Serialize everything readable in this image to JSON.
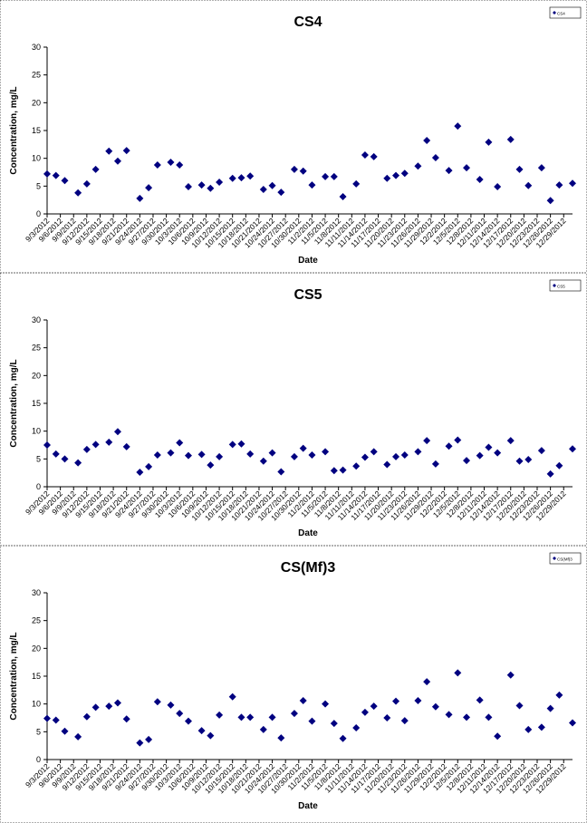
{
  "chart_data": [
    {
      "type": "scatter",
      "title": "CS4",
      "x_label": "Date",
      "y_label": "Concentration, mg/L",
      "legend": "upper right",
      "ylim": [
        0,
        30
      ],
      "yticks": [
        0,
        5,
        10,
        15,
        20,
        25,
        30
      ],
      "xlim": [
        "2012-09-03",
        "2012-12-31"
      ],
      "xticks": [
        {
          "value": "2012-09-03",
          "label": "9/3/2012"
        },
        {
          "value": "2012-09-06",
          "label": "9/6/2012"
        },
        {
          "value": "2012-09-09",
          "label": "9/9/2012"
        },
        {
          "value": "2012-09-12",
          "label": "9/12/2012"
        },
        {
          "value": "2012-09-15",
          "label": "9/15/2012"
        },
        {
          "value": "2012-09-18",
          "label": "9/18/2012"
        },
        {
          "value": "2012-09-21",
          "label": "9/21/2012"
        },
        {
          "value": "2012-09-24",
          "label": "9/24/2012"
        },
        {
          "value": "2012-09-27",
          "label": "9/27/2012"
        },
        {
          "value": "2012-09-30",
          "label": "9/30/2012"
        },
        {
          "value": "2012-10-03",
          "label": "10/3/2012"
        },
        {
          "value": "2012-10-06",
          "label": "10/6/2012"
        },
        {
          "value": "2012-10-09",
          "label": "10/9/2012"
        },
        {
          "value": "2012-10-12",
          "label": "10/12/2012"
        },
        {
          "value": "2012-10-15",
          "label": "10/15/2012"
        },
        {
          "value": "2012-10-18",
          "label": "10/18/2012"
        },
        {
          "value": "2012-10-21",
          "label": "10/21/2012"
        },
        {
          "value": "2012-10-24",
          "label": "10/24/2012"
        },
        {
          "value": "2012-10-27",
          "label": "10/27/2012"
        },
        {
          "value": "2012-10-30",
          "label": "10/30/2012"
        },
        {
          "value": "2012-11-02",
          "label": "11/2/2012"
        },
        {
          "value": "2012-11-05",
          "label": "11/5/2012"
        },
        {
          "value": "2012-11-08",
          "label": "11/8/2012"
        },
        {
          "value": "2012-11-11",
          "label": "11/11/2012"
        },
        {
          "value": "2012-11-14",
          "label": "11/14/2012"
        },
        {
          "value": "2012-11-17",
          "label": "11/17/2012"
        },
        {
          "value": "2012-11-20",
          "label": "11/20/2012"
        },
        {
          "value": "2012-11-23",
          "label": "11/23/2012"
        },
        {
          "value": "2012-11-26",
          "label": "11/26/2012"
        },
        {
          "value": "2012-11-29",
          "label": "11/29/2012"
        },
        {
          "value": "2012-12-02",
          "label": "12/2/2012"
        },
        {
          "value": "2012-12-05",
          "label": "12/5/2012"
        },
        {
          "value": "2012-12-08",
          "label": "12/8/2012"
        },
        {
          "value": "2012-12-11",
          "label": "12/11/2012"
        },
        {
          "value": "2012-12-14",
          "label": "12/14/2012"
        },
        {
          "value": "2012-12-17",
          "label": "12/17/2012"
        },
        {
          "value": "2012-12-20",
          "label": "12/20/2012"
        },
        {
          "value": "2012-12-23",
          "label": "12/23/2012"
        },
        {
          "value": "2012-12-26",
          "label": "12/26/2012"
        },
        {
          "value": "2012-12-29",
          "label": "12/29/2012"
        }
      ],
      "series": [
        {
          "name": "CS4",
          "color": "#000080",
          "x": [
            "2012-09-03",
            "2012-09-05",
            "2012-09-07",
            "2012-09-10",
            "2012-09-12",
            "2012-09-14",
            "2012-09-17",
            "2012-09-19",
            "2012-09-21",
            "2012-09-24",
            "2012-09-26",
            "2012-09-28",
            "2012-10-01",
            "2012-10-03",
            "2012-10-05",
            "2012-10-08",
            "2012-10-10",
            "2012-10-12",
            "2012-10-15",
            "2012-10-17",
            "2012-10-19",
            "2012-10-22",
            "2012-10-24",
            "2012-10-26",
            "2012-10-29",
            "2012-10-31",
            "2012-11-02",
            "2012-11-05",
            "2012-11-07",
            "2012-11-09",
            "2012-11-12",
            "2012-11-14",
            "2012-11-16",
            "2012-11-19",
            "2012-11-21",
            "2012-11-23",
            "2012-11-26",
            "2012-11-28",
            "2012-11-30",
            "2012-12-03",
            "2012-12-05",
            "2012-12-07",
            "2012-12-10",
            "2012-12-12",
            "2012-12-14",
            "2012-12-17",
            "2012-12-19",
            "2012-12-21",
            "2012-12-24",
            "2012-12-26",
            "2012-12-28",
            "2012-12-31"
          ],
          "values": [
            7.2,
            6.9,
            6.0,
            3.8,
            5.4,
            8.0,
            11.3,
            9.5,
            11.4,
            2.8,
            4.7,
            8.8,
            9.3,
            8.8,
            4.9,
            5.2,
            4.6,
            5.7,
            6.4,
            6.5,
            6.8,
            4.4,
            5.1,
            3.9,
            8.0,
            7.7,
            5.2,
            6.7,
            6.7,
            3.1,
            5.4,
            10.6,
            10.3,
            6.4,
            6.9,
            7.3,
            8.6,
            13.2,
            10.1,
            7.8,
            15.8,
            8.3,
            6.2,
            12.9,
            4.9,
            13.4,
            8.0,
            5.1,
            8.3,
            2.4,
            5.2,
            5.5
          ]
        }
      ]
    },
    {
      "type": "scatter",
      "title": "CS5",
      "x_label": "Date",
      "y_label": "Concentration, mg/L",
      "legend": "upper right",
      "ylim": [
        0,
        30
      ],
      "yticks": [
        0,
        5,
        10,
        15,
        20,
        25,
        30
      ],
      "xlim": [
        "2012-09-03",
        "2012-12-31"
      ],
      "xticks": [
        {
          "value": "2012-09-03",
          "label": "9/3/2012"
        },
        {
          "value": "2012-09-06",
          "label": "9/6/2012"
        },
        {
          "value": "2012-09-09",
          "label": "9/9/2012"
        },
        {
          "value": "2012-09-12",
          "label": "9/12/2012"
        },
        {
          "value": "2012-09-15",
          "label": "9/15/2012"
        },
        {
          "value": "2012-09-18",
          "label": "9/18/2012"
        },
        {
          "value": "2012-09-21",
          "label": "9/21/2012"
        },
        {
          "value": "2012-09-24",
          "label": "9/24/2012"
        },
        {
          "value": "2012-09-27",
          "label": "9/27/2012"
        },
        {
          "value": "2012-09-30",
          "label": "9/30/2012"
        },
        {
          "value": "2012-10-03",
          "label": "10/3/2012"
        },
        {
          "value": "2012-10-06",
          "label": "10/6/2012"
        },
        {
          "value": "2012-10-09",
          "label": "10/9/2012"
        },
        {
          "value": "2012-10-12",
          "label": "10/12/2012"
        },
        {
          "value": "2012-10-15",
          "label": "10/15/2012"
        },
        {
          "value": "2012-10-18",
          "label": "10/18/2012"
        },
        {
          "value": "2012-10-21",
          "label": "10/21/2012"
        },
        {
          "value": "2012-10-24",
          "label": "10/24/2012"
        },
        {
          "value": "2012-10-27",
          "label": "10/27/2012"
        },
        {
          "value": "2012-10-30",
          "label": "10/30/2012"
        },
        {
          "value": "2012-11-02",
          "label": "11/2/2012"
        },
        {
          "value": "2012-11-05",
          "label": "11/5/2012"
        },
        {
          "value": "2012-11-08",
          "label": "11/8/2012"
        },
        {
          "value": "2012-11-11",
          "label": "11/11/2012"
        },
        {
          "value": "2012-11-14",
          "label": "11/14/2012"
        },
        {
          "value": "2012-11-17",
          "label": "11/17/2012"
        },
        {
          "value": "2012-11-20",
          "label": "11/20/2012"
        },
        {
          "value": "2012-11-23",
          "label": "11/23/2012"
        },
        {
          "value": "2012-11-26",
          "label": "11/26/2012"
        },
        {
          "value": "2012-11-29",
          "label": "11/29/2012"
        },
        {
          "value": "2012-12-02",
          "label": "12/2/2012"
        },
        {
          "value": "2012-12-05",
          "label": "12/5/2012"
        },
        {
          "value": "2012-12-08",
          "label": "12/8/2012"
        },
        {
          "value": "2012-12-11",
          "label": "12/11/2012"
        },
        {
          "value": "2012-12-14",
          "label": "12/14/2012"
        },
        {
          "value": "2012-12-17",
          "label": "12/17/2012"
        },
        {
          "value": "2012-12-20",
          "label": "12/20/2012"
        },
        {
          "value": "2012-12-23",
          "label": "12/23/2012"
        },
        {
          "value": "2012-12-26",
          "label": "12/26/2012"
        },
        {
          "value": "2012-12-29",
          "label": "12/29/2012"
        }
      ],
      "series": [
        {
          "name": "CS5",
          "color": "#000080",
          "x": [
            "2012-09-03",
            "2012-09-05",
            "2012-09-07",
            "2012-09-10",
            "2012-09-12",
            "2012-09-14",
            "2012-09-17",
            "2012-09-19",
            "2012-09-21",
            "2012-09-24",
            "2012-09-26",
            "2012-09-28",
            "2012-10-01",
            "2012-10-03",
            "2012-10-05",
            "2012-10-08",
            "2012-10-10",
            "2012-10-12",
            "2012-10-15",
            "2012-10-17",
            "2012-10-19",
            "2012-10-22",
            "2012-10-24",
            "2012-10-26",
            "2012-10-29",
            "2012-10-31",
            "2012-11-02",
            "2012-11-05",
            "2012-11-07",
            "2012-11-09",
            "2012-11-12",
            "2012-11-14",
            "2012-11-16",
            "2012-11-19",
            "2012-11-21",
            "2012-11-23",
            "2012-11-26",
            "2012-11-28",
            "2012-11-30",
            "2012-12-03",
            "2012-12-05",
            "2012-12-07",
            "2012-12-10",
            "2012-12-12",
            "2012-12-14",
            "2012-12-17",
            "2012-12-19",
            "2012-12-21",
            "2012-12-24",
            "2012-12-26",
            "2012-12-28",
            "2012-12-31"
          ],
          "values": [
            7.5,
            5.9,
            5.0,
            4.3,
            6.7,
            7.6,
            8.0,
            9.9,
            7.2,
            2.6,
            3.6,
            5.7,
            6.1,
            7.9,
            5.6,
            5.8,
            3.9,
            5.4,
            7.6,
            7.7,
            5.9,
            4.6,
            6.1,
            2.7,
            5.4,
            6.9,
            5.7,
            6.3,
            2.9,
            3.0,
            3.7,
            5.3,
            6.3,
            4.0,
            5.4,
            5.7,
            6.3,
            8.3,
            4.1,
            7.3,
            8.4,
            4.7,
            5.6,
            7.1,
            6.1,
            8.3,
            4.6,
            4.9,
            6.5,
            2.3,
            3.8,
            6.8
          ]
        }
      ]
    },
    {
      "type": "scatter",
      "title": "CS(Mf)3",
      "x_label": "Date",
      "y_label": "Concentration, mg/L",
      "legend": "upper right",
      "ylim": [
        0,
        30
      ],
      "yticks": [
        0,
        5,
        10,
        15,
        20,
        25,
        30
      ],
      "xlim": [
        "2012-09-03",
        "2012-12-31"
      ],
      "xticks": [
        {
          "value": "2012-09-03",
          "label": "9/3/2012"
        },
        {
          "value": "2012-09-06",
          "label": "9/6/2012"
        },
        {
          "value": "2012-09-09",
          "label": "9/9/2012"
        },
        {
          "value": "2012-09-12",
          "label": "9/12/2012"
        },
        {
          "value": "2012-09-15",
          "label": "9/15/2012"
        },
        {
          "value": "2012-09-18",
          "label": "9/18/2012"
        },
        {
          "value": "2012-09-21",
          "label": "9/21/2012"
        },
        {
          "value": "2012-09-24",
          "label": "9/24/2012"
        },
        {
          "value": "2012-09-27",
          "label": "9/27/2012"
        },
        {
          "value": "2012-09-30",
          "label": "9/30/2012"
        },
        {
          "value": "2012-10-03",
          "label": "10/3/2012"
        },
        {
          "value": "2012-10-06",
          "label": "10/6/2012"
        },
        {
          "value": "2012-10-09",
          "label": "10/9/2012"
        },
        {
          "value": "2012-10-12",
          "label": "10/12/2012"
        },
        {
          "value": "2012-10-15",
          "label": "10/15/2012"
        },
        {
          "value": "2012-10-18",
          "label": "10/18/2012"
        },
        {
          "value": "2012-10-21",
          "label": "10/21/2012"
        },
        {
          "value": "2012-10-24",
          "label": "10/24/2012"
        },
        {
          "value": "2012-10-27",
          "label": "10/27/2012"
        },
        {
          "value": "2012-10-30",
          "label": "10/30/2012"
        },
        {
          "value": "2012-11-02",
          "label": "11/2/2012"
        },
        {
          "value": "2012-11-05",
          "label": "11/5/2012"
        },
        {
          "value": "2012-11-08",
          "label": "11/8/2012"
        },
        {
          "value": "2012-11-11",
          "label": "11/11/2012"
        },
        {
          "value": "2012-11-14",
          "label": "11/14/2012"
        },
        {
          "value": "2012-11-17",
          "label": "11/17/2012"
        },
        {
          "value": "2012-11-20",
          "label": "11/20/2012"
        },
        {
          "value": "2012-11-23",
          "label": "11/23/2012"
        },
        {
          "value": "2012-11-26",
          "label": "11/26/2012"
        },
        {
          "value": "2012-11-29",
          "label": "11/29/2012"
        },
        {
          "value": "2012-12-02",
          "label": "12/2/2012"
        },
        {
          "value": "2012-12-05",
          "label": "12/5/2012"
        },
        {
          "value": "2012-12-08",
          "label": "12/8/2012"
        },
        {
          "value": "2012-12-11",
          "label": "12/11/2012"
        },
        {
          "value": "2012-12-14",
          "label": "12/14/2012"
        },
        {
          "value": "2012-12-17",
          "label": "12/17/2012"
        },
        {
          "value": "2012-12-20",
          "label": "12/20/2012"
        },
        {
          "value": "2012-12-23",
          "label": "12/23/2012"
        },
        {
          "value": "2012-12-26",
          "label": "12/26/2012"
        },
        {
          "value": "2012-12-29",
          "label": "12/29/2012"
        }
      ],
      "series": [
        {
          "name": "CS(Mf)3",
          "color": "#000080",
          "x": [
            "2012-09-03",
            "2012-09-05",
            "2012-09-07",
            "2012-09-10",
            "2012-09-12",
            "2012-09-14",
            "2012-09-17",
            "2012-09-19",
            "2012-09-21",
            "2012-09-24",
            "2012-09-26",
            "2012-09-28",
            "2012-10-01",
            "2012-10-03",
            "2012-10-05",
            "2012-10-08",
            "2012-10-10",
            "2012-10-12",
            "2012-10-15",
            "2012-10-17",
            "2012-10-19",
            "2012-10-22",
            "2012-10-24",
            "2012-10-26",
            "2012-10-29",
            "2012-10-31",
            "2012-11-02",
            "2012-11-05",
            "2012-11-07",
            "2012-11-09",
            "2012-11-12",
            "2012-11-14",
            "2012-11-16",
            "2012-11-19",
            "2012-11-21",
            "2012-11-23",
            "2012-11-26",
            "2012-11-28",
            "2012-11-30",
            "2012-12-03",
            "2012-12-05",
            "2012-12-07",
            "2012-12-10",
            "2012-12-12",
            "2012-12-14",
            "2012-12-17",
            "2012-12-19",
            "2012-12-21",
            "2012-12-24",
            "2012-12-26",
            "2012-12-28",
            "2012-12-31"
          ],
          "values": [
            7.4,
            7.1,
            5.1,
            4.1,
            7.7,
            9.4,
            9.6,
            10.2,
            7.3,
            3.0,
            3.6,
            10.4,
            9.8,
            8.3,
            6.9,
            5.2,
            4.3,
            8.0,
            11.3,
            7.6,
            7.6,
            5.4,
            7.6,
            3.9,
            8.3,
            10.6,
            6.9,
            10.0,
            6.5,
            3.8,
            5.7,
            8.5,
            9.6,
            7.5,
            10.5,
            7.0,
            10.6,
            14.0,
            9.5,
            8.1,
            15.6,
            7.6,
            10.7,
            7.6,
            4.2,
            15.2,
            9.7,
            5.4,
            5.8,
            9.2,
            11.6,
            6.6
          ]
        }
      ]
    }
  ]
}
